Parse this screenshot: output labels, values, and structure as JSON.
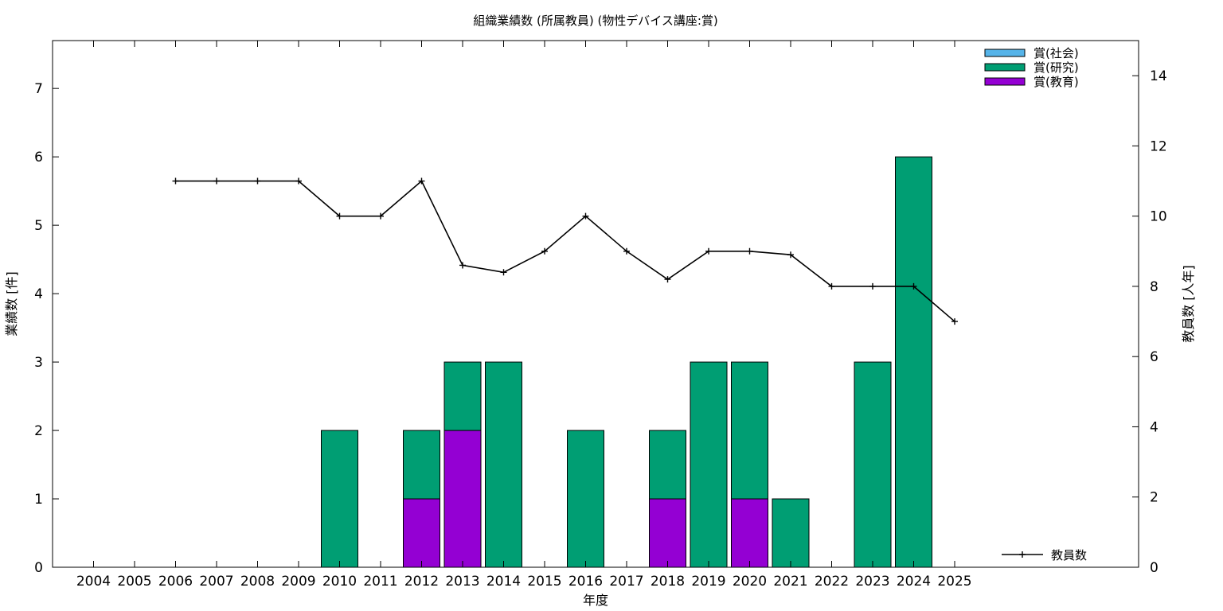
{
  "chart_data": {
    "type": "bar",
    "title": "組織業績数 (所属教員) (物性デバイス講座:賞)",
    "xlabel": "年度",
    "ylabel": "業績数 [件]",
    "y2label": "教員数 [人年]",
    "categories": [
      "2004",
      "2005",
      "2006",
      "2007",
      "2008",
      "2009",
      "2010",
      "2011",
      "2012",
      "2013",
      "2014",
      "2015",
      "2016",
      "2017",
      "2018",
      "2019",
      "2020",
      "2021",
      "2022",
      "2023",
      "2024",
      "2025"
    ],
    "ylim": [
      0,
      7.7
    ],
    "yticks": [
      "0",
      "1",
      "2",
      "3",
      "4",
      "5",
      "6",
      "7"
    ],
    "y2lim": [
      0,
      15
    ],
    "y2ticks": [
      "0",
      "2",
      "4",
      "6",
      "8",
      "10",
      "12",
      "14"
    ],
    "stacked": true,
    "series": [
      {
        "name": "賞(教育)",
        "color": "#9400d3",
        "values": [
          0,
          0,
          0,
          0,
          0,
          0,
          0,
          0,
          1,
          2,
          0,
          0,
          0,
          0,
          1,
          0,
          1,
          0,
          0,
          0,
          0,
          0
        ]
      },
      {
        "name": "賞(研究)",
        "color": "#009e73",
        "values": [
          0,
          0,
          0,
          0,
          0,
          0,
          2,
          0,
          1,
          1,
          3,
          0,
          2,
          0,
          1,
          3,
          2,
          1,
          0,
          3,
          6,
          0
        ]
      },
      {
        "name": "賞(社会)",
        "color": "#56b4e9",
        "values": [
          0,
          0,
          0,
          0,
          0,
          0,
          0,
          0,
          0,
          0,
          0,
          0,
          0,
          0,
          0,
          0,
          0,
          0,
          0,
          0,
          0,
          0
        ]
      }
    ],
    "line_series": {
      "name": "教員数",
      "color": "#000000",
      "axis": "y2",
      "x": [
        "2006",
        "2007",
        "2008",
        "2009",
        "2010",
        "2011",
        "2012",
        "2013",
        "2014",
        "2015",
        "2016",
        "2017",
        "2018",
        "2019",
        "2020",
        "2021",
        "2022",
        "2023",
        "2024",
        "2025"
      ],
      "values": [
        11,
        11,
        11,
        11,
        10,
        10,
        11,
        8.6,
        8.4,
        9,
        10,
        9,
        8.2,
        9,
        9,
        8.9,
        8,
        8,
        8,
        7
      ]
    },
    "legend_order": [
      "賞(社会)",
      "賞(研究)",
      "賞(教育)"
    ],
    "legend_position": "top-right",
    "line_legend_position": "bottom-right",
    "grid": false
  }
}
